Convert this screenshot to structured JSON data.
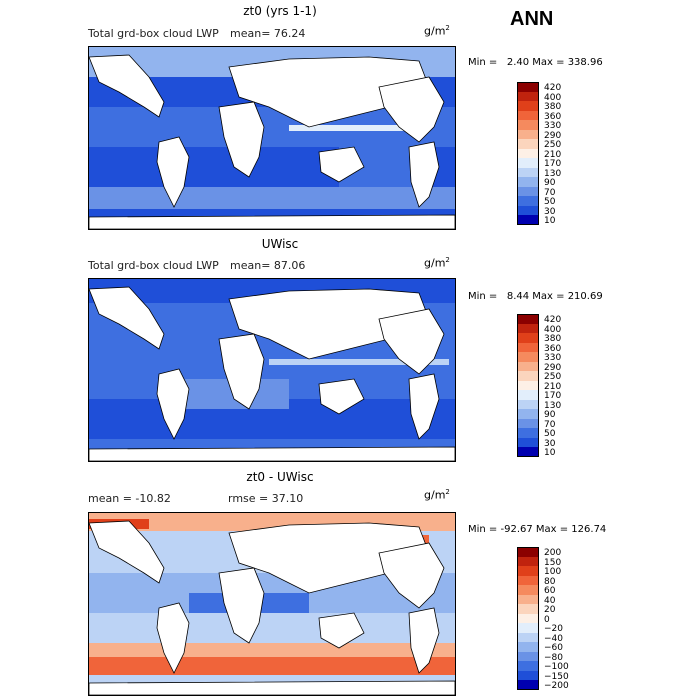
{
  "season": "ANN",
  "panels": [
    {
      "title": "zt0 (yrs 1-1)",
      "field": "Total grd-box cloud LWP",
      "stat": "mean=  76.24",
      "units": "g/m",
      "units_exp": "2",
      "minmax": "Min =   2.40 Max = 338.96",
      "colorbar": [
        "420",
        "400",
        "380",
        "360",
        "330",
        "290",
        "250",
        "210",
        "170",
        "130",
        "90",
        "70",
        "50",
        "30",
        "10"
      ],
      "colors": [
        "#8b0000",
        "#c0230e",
        "#e0401a",
        "#f0643a",
        "#f58a5e",
        "#f8b08c",
        "#fbd5bd",
        "#fdf0e6",
        "#e2eefb",
        "#bcd3f5",
        "#92b4ee",
        "#6a92e6",
        "#3e6fe0",
        "#1f4fd8",
        "#0000b0"
      ]
    },
    {
      "title": "UWisc",
      "field": "Total grd-box cloud LWP",
      "stat": "mean=  87.06",
      "units": "g/m",
      "units_exp": "2",
      "minmax": "Min =   8.44 Max = 210.69",
      "colorbar": [
        "420",
        "400",
        "380",
        "360",
        "330",
        "290",
        "250",
        "210",
        "170",
        "130",
        "90",
        "70",
        "50",
        "30",
        "10"
      ],
      "colors": [
        "#8b0000",
        "#c0230e",
        "#e0401a",
        "#f0643a",
        "#f58a5e",
        "#f8b08c",
        "#fbd5bd",
        "#fdf0e6",
        "#e2eefb",
        "#bcd3f5",
        "#92b4ee",
        "#6a92e6",
        "#3e6fe0",
        "#1f4fd8",
        "#0000b0"
      ]
    },
    {
      "title": "zt0 - UWisc",
      "field_left": "mean = -10.82",
      "field_right": "rmse =  37.10",
      "units": "g/m",
      "units_exp": "2",
      "minmax": "Min = -92.67 Max = 126.74",
      "colorbar": [
        "200",
        "150",
        "100",
        "80",
        "60",
        "40",
        "20",
        "0",
        "−20",
        "−40",
        "−60",
        "−80",
        "−100",
        "−150",
        "−200"
      ],
      "colors": [
        "#8b0000",
        "#c0230e",
        "#e0401a",
        "#f0643a",
        "#f58a5e",
        "#f8b08c",
        "#fbd5bd",
        "#fdf0e6",
        "#e2eefb",
        "#bcd3f5",
        "#92b4ee",
        "#6a92e6",
        "#3e6fe0",
        "#1f4fd8",
        "#0000b0"
      ]
    }
  ]
}
